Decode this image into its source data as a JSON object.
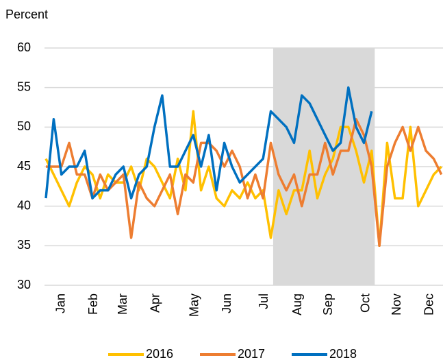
{
  "chart_data": {
    "type": "line",
    "y_label": "Percent",
    "x": [
      1,
      2,
      3,
      4,
      5,
      6,
      7,
      8,
      9,
      10,
      11,
      12,
      13,
      14,
      15,
      16,
      17,
      18,
      19,
      20,
      21,
      22,
      23,
      24,
      25,
      26,
      27,
      28,
      29,
      30,
      31,
      32,
      33,
      34,
      35,
      36,
      37,
      38,
      39,
      40,
      41,
      42,
      43,
      44,
      45,
      46,
      47,
      48,
      49,
      50,
      51,
      52
    ],
    "series": [
      {
        "name": "2016",
        "color": "#ffc000",
        "values": [
          46,
          44,
          42,
          40,
          43,
          45,
          44,
          41,
          44,
          43,
          43,
          45,
          42,
          46,
          45,
          43,
          41,
          46,
          42,
          52,
          42,
          45,
          41,
          40,
          42,
          41,
          43,
          41,
          42,
          36,
          42,
          39,
          42,
          42,
          47,
          41,
          44,
          46,
          50,
          50,
          47,
          43,
          47,
          35,
          48,
          41,
          41,
          50,
          40,
          42,
          44,
          45
        ]
      },
      {
        "name": "2017",
        "color": "#ed7d31",
        "values": [
          45,
          45,
          45,
          48,
          44,
          44,
          41,
          44,
          42,
          43,
          44,
          36,
          43,
          41,
          40,
          42,
          44,
          39,
          44,
          43,
          48,
          48,
          47,
          45,
          47,
          45,
          41,
          44,
          41,
          48,
          44,
          42,
          44,
          40,
          44,
          44,
          48,
          44,
          47,
          47,
          51,
          49,
          45,
          35,
          45,
          48,
          50,
          47,
          50,
          47,
          46,
          44
        ]
      },
      {
        "name": "2018",
        "color": "#0070c0",
        "values": [
          41,
          51,
          44,
          45,
          45,
          47,
          41,
          42,
          42,
          44,
          45,
          41,
          44,
          45,
          50,
          54,
          45,
          45,
          47,
          49,
          45,
          49,
          42,
          48,
          45,
          43,
          44,
          45,
          46,
          52,
          51,
          50,
          48,
          54,
          53,
          51,
          49,
          47,
          48,
          55,
          50,
          48,
          52,
          null,
          null,
          null,
          null,
          null,
          null,
          null,
          null,
          null
        ]
      }
    ],
    "shaded_span": [
      30.3,
      43.4
    ],
    "shade_color": "#d9d9d9",
    "xlim": [
      0.82,
      52.2
    ],
    "xticks": [
      {
        "value": 3.0,
        "label": "Jan"
      },
      {
        "value": 7.2,
        "label": "Feb"
      },
      {
        "value": 11.0,
        "label": "Mar"
      },
      {
        "value": 15.2,
        "label": "Apr"
      },
      {
        "value": 20.2,
        "label": "May"
      },
      {
        "value": 24.4,
        "label": "Jun"
      },
      {
        "value": 29.2,
        "label": "Jul"
      },
      {
        "value": 33.5,
        "label": "Aug"
      },
      {
        "value": 37.5,
        "label": "Sep"
      },
      {
        "value": 42.3,
        "label": "Oct"
      },
      {
        "value": 46.3,
        "label": "Nov"
      },
      {
        "value": 50.5,
        "label": "Dec"
      }
    ],
    "ylim": [
      30,
      60
    ],
    "yticks": [
      30,
      35,
      40,
      45,
      50,
      55,
      60
    ],
    "grid": true,
    "legend": "bottom"
  }
}
